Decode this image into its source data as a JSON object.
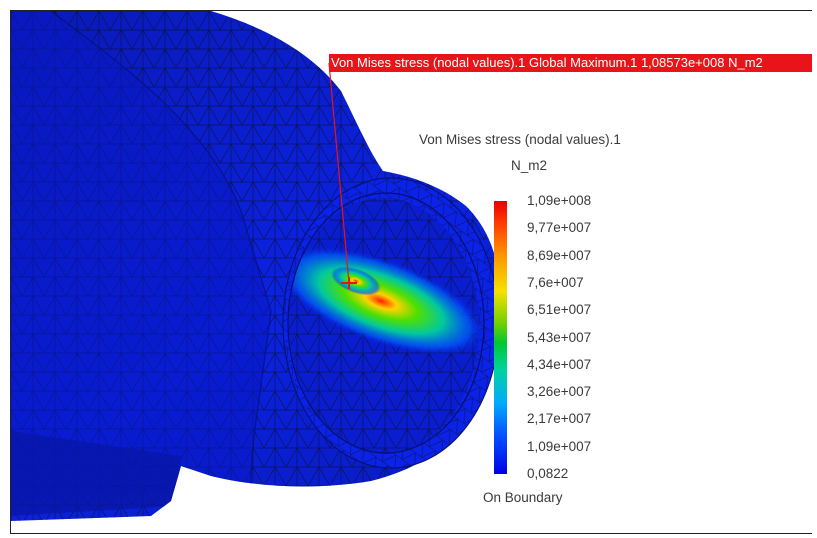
{
  "result_label": {
    "text": "Von Mises stress (nodal values).1  Global Maximum.1  1,08573e+008 N_m2"
  },
  "legend": {
    "title": "Von Mises stress (nodal values).1",
    "unit": "N_m2",
    "ticks": [
      "1,09e+008",
      "9,77e+007",
      "8,69e+007",
      "7,6e+007",
      "6,51e+007",
      "5,43e+007",
      "4,34e+007",
      "3,26e+007",
      "2,17e+007",
      "1,09e+007",
      "0,0822"
    ],
    "footer": "On Boundary",
    "colors": [
      "#e80000",
      "#ff9600",
      "#f5e100",
      "#00c832",
      "#00aaff",
      "#0000e6"
    ]
  },
  "model": {
    "base_color": "#0a1fd6",
    "marker_color": "#e8141a"
  }
}
